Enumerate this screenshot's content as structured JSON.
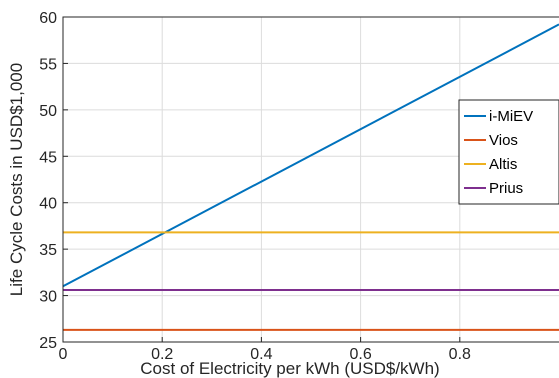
{
  "chart_data": {
    "type": "line",
    "title": "",
    "xlabel": "Cost of Electricity per kWh (USD$/kWh)",
    "ylabel": "Life Cycle Costs in USD$1,000",
    "xlim": [
      0,
      1
    ],
    "ylim": [
      25,
      60
    ],
    "x_ticks": [
      0,
      0.2,
      0.4,
      0.6,
      0.8
    ],
    "x_tick_labels": [
      "0",
      "0.2",
      "0.4",
      "0.6",
      "0.8"
    ],
    "y_ticks": [
      25,
      30,
      35,
      40,
      45,
      50,
      55,
      60
    ],
    "y_tick_labels": [
      "25",
      "30",
      "35",
      "40",
      "45",
      "50",
      "55",
      "60"
    ],
    "grid": true,
    "legend_position": "right",
    "series": [
      {
        "name": "i-MiEV",
        "color": "#0072BD",
        "x": [
          0,
          1
        ],
        "y": [
          31,
          59.2
        ]
      },
      {
        "name": "Vios",
        "color": "#D95319",
        "x": [
          0,
          1
        ],
        "y": [
          26.3,
          26.3
        ]
      },
      {
        "name": "Altis",
        "color": "#EDB120",
        "x": [
          0,
          1
        ],
        "y": [
          36.8,
          36.8
        ]
      },
      {
        "name": "Prius",
        "color": "#7E2F8E",
        "x": [
          0,
          1
        ],
        "y": [
          30.6,
          30.6
        ]
      }
    ]
  }
}
